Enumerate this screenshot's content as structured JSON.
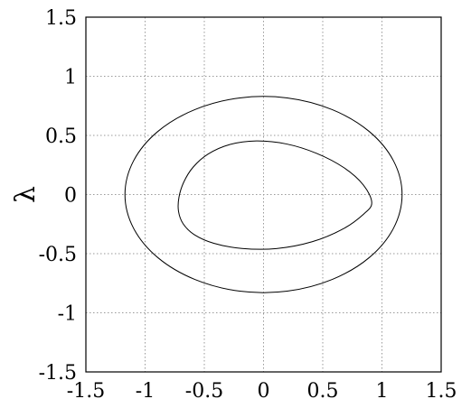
{
  "chart_data": {
    "type": "line",
    "title": "",
    "xlabel": "",
    "ylabel": "λ",
    "xlim": [
      -1.5,
      1.5
    ],
    "ylim": [
      -1.5,
      1.5
    ],
    "grid": true,
    "xticks": [
      "-1.5",
      "-1",
      "-0.5",
      "0",
      "0.5",
      "1",
      "1.5"
    ],
    "yticks": [
      "-1.5",
      "-1",
      "-0.5",
      "0",
      "0.5",
      "1",
      "1.5"
    ],
    "xtick_values": [
      -1.5,
      -1,
      -0.5,
      0,
      0.5,
      1,
      1.5
    ],
    "ytick_values": [
      -1.5,
      -1,
      -0.5,
      0,
      0.5,
      1,
      1.5
    ],
    "series": [
      {
        "x": [
          1.17,
          1.098,
          0.893,
          0.58,
          0.2,
          -0.2,
          -0.58,
          -0.893,
          -1.098,
          -1.17,
          -1.098,
          -0.893,
          -0.58,
          -0.2,
          0.2,
          0.58,
          0.893,
          1.098,
          1.17
        ],
        "y": [
          0.0,
          0.284,
          0.533,
          0.718,
          0.817,
          0.817,
          0.718,
          0.533,
          0.284,
          0.0,
          -0.284,
          -0.533,
          -0.718,
          -0.817,
          -0.817,
          -0.718,
          -0.533,
          -0.284,
          0.0
        ],
        "color": "#000000"
      },
      {
        "x": [
          0.914,
          0.843,
          0.679,
          0.449,
          0.192,
          -0.062,
          -0.288,
          -0.467,
          -0.595,
          -0.674,
          -0.714,
          -0.718,
          -0.679,
          -0.585,
          -0.42,
          -0.182,
          0.109,
          0.411,
          0.673,
          0.847,
          0.914
        ],
        "y": [
          -0.069,
          0.081,
          0.227,
          0.348,
          0.428,
          0.453,
          0.422,
          0.343,
          0.231,
          0.104,
          -0.023,
          -0.141,
          -0.247,
          -0.339,
          -0.412,
          -0.456,
          -0.457,
          -0.399,
          -0.29,
          -0.164,
          -0.069
        ],
        "color": "#000000"
      }
    ]
  }
}
